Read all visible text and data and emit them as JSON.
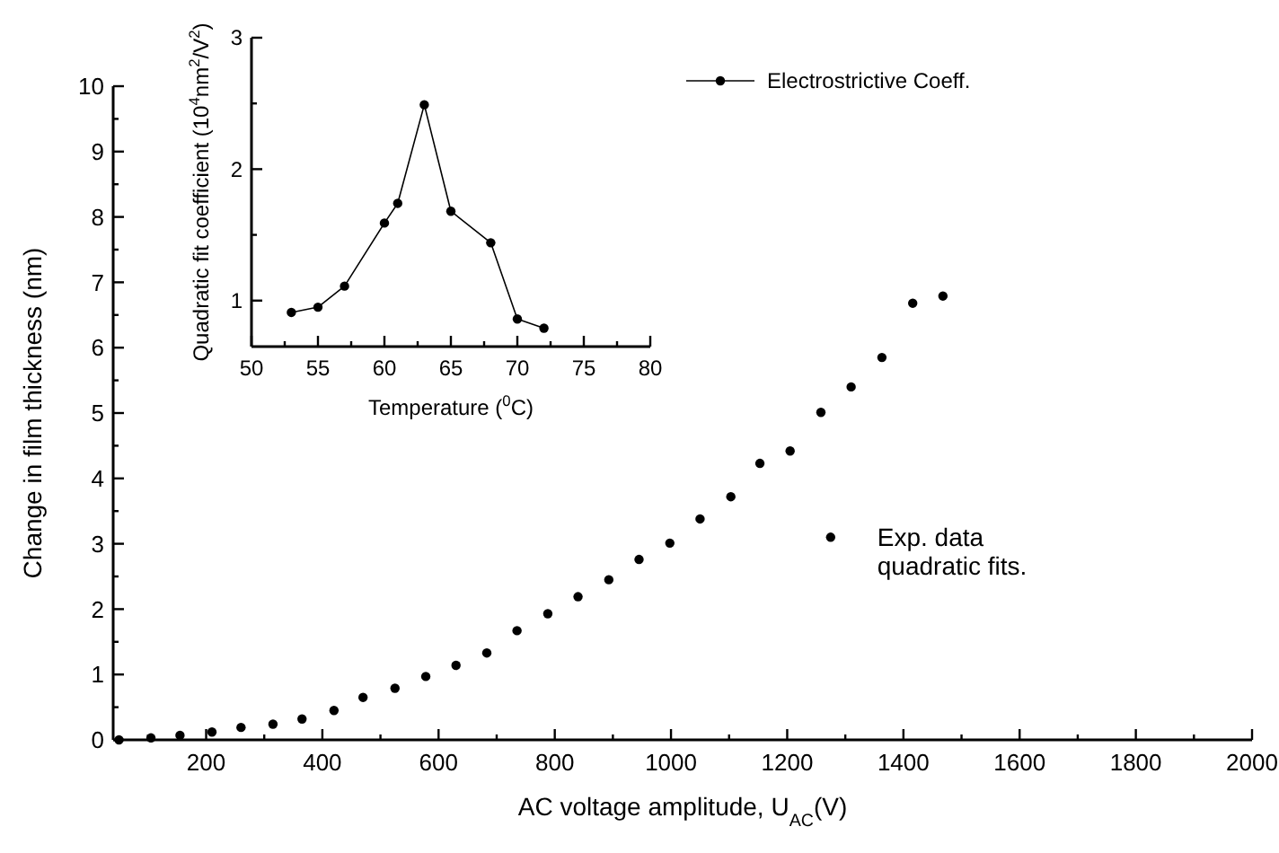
{
  "chart_data": [
    {
      "type": "scatter",
      "xlabel": "AC voltage amplitude, U$_{AC}$(V)",
      "ylabel": "Change in film thickness (nm)",
      "marker": "circle",
      "legend": "right",
      "grid": false,
      "xlim": [
        40,
        2000
      ],
      "ylim": [
        0,
        10
      ],
      "xticks": [
        {
          "value": 100,
          "label": null
        },
        200,
        {
          "value": 300,
          "label": null
        },
        400,
        {
          "value": 500,
          "label": null
        },
        600,
        {
          "value": 700,
          "label": null
        },
        800,
        {
          "value": 900,
          "label": null
        },
        1000,
        {
          "value": 1100,
          "label": null
        },
        1200,
        {
          "value": 1300,
          "label": null
        },
        1400,
        {
          "value": 1500,
          "label": null
        },
        1600,
        {
          "value": 1700,
          "label": null
        },
        1800,
        {
          "value": 1900,
          "label": null
        },
        2000
      ],
      "yticks": [
        0,
        {
          "value": 0.5,
          "label": null
        },
        1,
        {
          "value": 1.5,
          "label": null
        },
        2,
        {
          "value": 2.5,
          "label": null
        },
        3,
        {
          "value": 3.5,
          "label": null
        },
        4,
        {
          "value": 4.5,
          "label": null
        },
        5,
        {
          "value": 5.5,
          "label": null
        },
        6,
        {
          "value": 6.5,
          "label": null
        },
        7,
        {
          "value": 7.5,
          "label": null
        },
        8,
        {
          "value": 8.5,
          "label": null
        },
        9,
        {
          "value": 9.5,
          "label": null
        },
        10
      ],
      "series": [
        {
          "name": "Exp. data\nquadratic fits.",
          "color": "#000000",
          "x": [
            50,
            105,
            155,
            210,
            260,
            315,
            365,
            420,
            470,
            525,
            578,
            630,
            683,
            735,
            788,
            840,
            893,
            945,
            998,
            1050,
            1103,
            1153,
            1205,
            1258,
            1310,
            1363,
            1416,
            1468
          ],
          "values": [
            0,
            0.03,
            0.07,
            0.12,
            0.19,
            0.24,
            0.32,
            0.45,
            0.65,
            0.79,
            0.97,
            1.14,
            1.33,
            1.67,
            1.93,
            2.19,
            2.45,
            2.76,
            3.01,
            3.38,
            3.72,
            4.23,
            4.42,
            5.01,
            5.4,
            5.85,
            6.68,
            6.79
          ]
        }
      ]
    },
    {
      "type": "line",
      "xlabel": "Temperature ($^{0}$C)",
      "ylabel": "Quadratic fit coefficient (10$^{4}$nm$^{2}$/V$^{2}$)",
      "marker": "circle",
      "legend": "top right",
      "grid": false,
      "xlim": [
        50,
        80
      ],
      "ylim": [
        0.65,
        3
      ],
      "xticks": [
        50,
        {
          "value": 52.5,
          "label": null
        },
        55,
        {
          "value": 57.5,
          "label": null
        },
        60,
        {
          "value": 62.5,
          "label": null
        },
        65,
        {
          "value": 67.5,
          "label": null
        },
        70,
        {
          "value": 72.5,
          "label": null
        },
        75,
        {
          "value": 77.5,
          "label": null
        },
        80
      ],
      "yticks": [
        1,
        {
          "value": 1.5,
          "label": null
        },
        2,
        {
          "value": 2.5,
          "label": null
        },
        3
      ],
      "series": [
        {
          "name": "Electrostrictive Coeff.",
          "color": "#000000",
          "x": [
            53,
            55,
            57,
            60,
            61,
            63,
            65,
            68,
            70,
            72
          ],
          "values": [
            0.91,
            0.95,
            1.11,
            1.59,
            1.74,
            2.49,
            1.68,
            1.44,
            0.86,
            0.79
          ]
        }
      ]
    }
  ]
}
